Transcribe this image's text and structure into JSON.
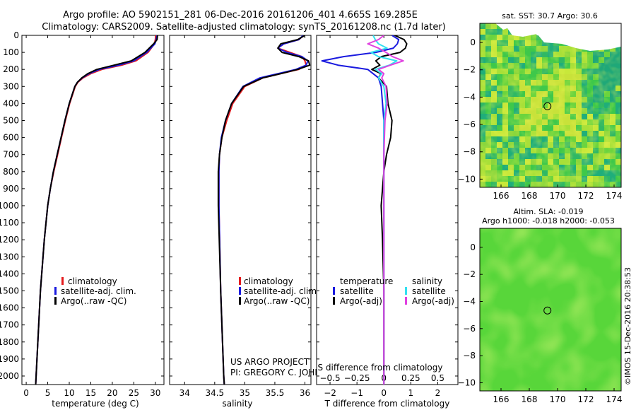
{
  "header": {
    "line1": "Argo profile: AO 5902151_281 06-Dec-2016 20161206_401 4.665S 169.285E",
    "line2": "Climatology: CARS2009. Satellite-adjusted climatology: synTS_20161208.nc (1.7d later)"
  },
  "credit": {
    "project": "US ARGO PROJECT",
    "pi": "PI: GREGORY C. JOHNSON",
    "side": "©IMOS 15-Dec-2016 20:38:53"
  },
  "colors": {
    "climatology": "#e41a1c",
    "satellite": "#1a1adf",
    "argo": "#000000",
    "sal_satellite": "#33e0f0",
    "sal_argo": "#e040e0"
  },
  "chart_data": [
    {
      "id": "temperature",
      "type": "line",
      "xlabel": "temperature (deg C)",
      "ylabel": "",
      "xlim": [
        -1,
        32
      ],
      "ylim": [
        2050,
        0
      ],
      "xticks": [
        0,
        5,
        10,
        15,
        20,
        25,
        30
      ],
      "yticks": [
        0,
        100,
        200,
        300,
        400,
        500,
        600,
        700,
        800,
        900,
        1000,
        1100,
        1200,
        1300,
        1400,
        1500,
        1600,
        1700,
        1800,
        1900,
        2000
      ],
      "legend": [
        "climatology",
        "satellite-adj. clim.",
        "Argo(..raw -QC)"
      ],
      "series": [
        {
          "name": "climatology",
          "depth": [
            0,
            25,
            50,
            100,
            150,
            175,
            200,
            225,
            250,
            275,
            300,
            400,
            500,
            600,
            700,
            800,
            900,
            1000,
            1200,
            1500,
            2000,
            2050
          ],
          "values": [
            30.1,
            30.0,
            29.8,
            28.3,
            25.5,
            22.2,
            17.6,
            15.0,
            13.2,
            12.0,
            11.4,
            10.1,
            9.1,
            8.2,
            7.3,
            6.4,
            5.6,
            5.0,
            4.2,
            3.3,
            2.3,
            2.2
          ]
        },
        {
          "name": "satellite",
          "depth": [
            0,
            25,
            50,
            100,
            150,
            175,
            200,
            225,
            250,
            275,
            300,
            400,
            500,
            600,
            700,
            800,
            900,
            1000,
            1200,
            1500,
            2000,
            2050
          ],
          "values": [
            30.4,
            30.2,
            29.9,
            28.0,
            25.0,
            21.5,
            17.0,
            14.6,
            13.0,
            11.9,
            11.3,
            10.0,
            9.0,
            8.1,
            7.2,
            6.3,
            5.6,
            5.0,
            4.2,
            3.3,
            2.3,
            2.2
          ]
        },
        {
          "name": "argo",
          "depth": [
            0,
            25,
            50,
            100,
            150,
            175,
            200,
            225,
            250,
            275,
            300,
            400,
            500,
            600,
            700,
            800,
            900,
            1000,
            1200,
            1500,
            2000,
            2050
          ],
          "values": [
            30.5,
            30.4,
            29.6,
            27.6,
            24.4,
            20.4,
            16.4,
            14.3,
            12.9,
            11.9,
            11.3,
            10.0,
            9.0,
            8.1,
            7.2,
            6.3,
            5.6,
            5.0,
            4.2,
            3.3,
            2.3,
            2.2
          ]
        }
      ]
    },
    {
      "id": "salinity",
      "type": "line",
      "xlabel": "salinity",
      "xlim": [
        33.75,
        36.1
      ],
      "ylim": [
        2050,
        0
      ],
      "xticks": [
        34,
        34.5,
        35,
        35.5,
        36
      ],
      "xticklabels": [
        "34",
        "34.5",
        "35",
        "35.5",
        "36"
      ],
      "legend": [
        "climatology",
        "satellite-adj. clim.",
        "Argo(..raw -QC)"
      ],
      "series": [
        {
          "name": "climatology",
          "depth": [
            0,
            25,
            50,
            75,
            100,
            125,
            150,
            175,
            200,
            225,
            250,
            300,
            400,
            500,
            600,
            700,
            800,
            1000,
            1500,
            2000,
            2050
          ],
          "values": [
            35.98,
            35.9,
            35.65,
            35.55,
            35.75,
            35.95,
            36.0,
            36.02,
            35.9,
            35.6,
            35.3,
            35.0,
            34.8,
            34.7,
            34.62,
            34.58,
            34.57,
            34.57,
            34.6,
            34.65,
            34.66
          ]
        },
        {
          "name": "satellite",
          "depth": [
            0,
            25,
            50,
            75,
            100,
            125,
            150,
            175,
            200,
            225,
            250,
            300,
            400,
            500,
            600,
            700,
            800,
            1000,
            1500,
            2000,
            2050
          ],
          "values": [
            35.97,
            35.9,
            35.65,
            35.55,
            35.7,
            35.95,
            36.05,
            36.02,
            35.85,
            35.55,
            35.25,
            34.97,
            34.78,
            34.68,
            34.61,
            34.58,
            34.57,
            34.57,
            34.6,
            34.65,
            34.66
          ]
        },
        {
          "name": "argo",
          "depth": [
            0,
            25,
            50,
            75,
            100,
            125,
            150,
            175,
            200,
            225,
            250,
            300,
            400,
            500,
            600,
            700,
            800,
            1000,
            1500,
            2000,
            2050
          ],
          "values": [
            36.0,
            35.88,
            35.6,
            35.55,
            35.62,
            35.9,
            36.06,
            36.08,
            35.88,
            35.6,
            35.3,
            34.98,
            34.78,
            34.68,
            34.62,
            34.58,
            34.56,
            34.56,
            34.6,
            34.65,
            34.66
          ]
        }
      ]
    },
    {
      "id": "differences",
      "type": "line",
      "xlabel": "T difference from climatology",
      "top_label": "S difference from climatology",
      "xlim": [
        -2.5,
        2.75
      ],
      "ylim": [
        2050,
        0
      ],
      "xticks": [
        -2,
        -1,
        0,
        1,
        2
      ],
      "xticklabels": [
        "−2",
        "−1",
        "0",
        "1",
        "2"
      ],
      "s_ticks": [
        -0.5,
        -0.25,
        0,
        0.25,
        0.5
      ],
      "s_ticklabels": [
        "−0.5",
        "−0.25",
        "0",
        "0.25",
        "0.5"
      ],
      "s_scale": 4,
      "legend_t_title": "temperature",
      "legend_s_title": "salinity",
      "legend_t": [
        "satellite",
        "Argo(-adj)"
      ],
      "legend_s": [
        "satellite",
        "Argo(-adj)"
      ],
      "series": [
        {
          "name": "T satellite",
          "variable": "T",
          "depth": [
            0,
            25,
            50,
            75,
            100,
            125,
            150,
            175,
            200,
            225,
            250,
            300,
            400,
            500,
            700,
            1000,
            1500,
            2000,
            2050
          ],
          "values": [
            0.3,
            0.55,
            0.5,
            0.35,
            -0.3,
            -1.5,
            -2.3,
            -1.7,
            -0.6,
            -0.4,
            -0.2,
            -0.1,
            -0.05,
            0.0,
            0.0,
            0.0,
            0.0,
            0.0,
            0.0
          ]
        },
        {
          "name": "T argo",
          "variable": "T",
          "depth": [
            0,
            25,
            50,
            75,
            100,
            125,
            150,
            175,
            200,
            225,
            250,
            300,
            400,
            500,
            600,
            700,
            800,
            1000,
            1200,
            1500,
            1800,
            2000,
            2050
          ],
          "values": [
            0.4,
            0.75,
            0.85,
            0.8,
            0.6,
            -0.1,
            -0.3,
            -0.15,
            -0.45,
            -0.1,
            -0.2,
            0.1,
            0.15,
            0.3,
            0.25,
            0.1,
            0.0,
            -0.1,
            -0.05,
            0.0,
            0.0,
            0.0,
            0.0
          ]
        },
        {
          "name": "S satellite",
          "variable": "S",
          "depth": [
            0,
            25,
            50,
            75,
            100,
            125,
            150,
            175,
            200,
            225,
            250,
            300,
            400,
            500,
            700,
            1000,
            1500,
            2000,
            2050
          ],
          "values": [
            -0.1,
            -0.08,
            -0.05,
            0.03,
            -0.12,
            -0.05,
            0.12,
            0.05,
            -0.08,
            -0.02,
            -0.05,
            0.0,
            0.02,
            0.0,
            0.0,
            0.0,
            0.0,
            0.0,
            0.0
          ]
        },
        {
          "name": "S argo",
          "variable": "S",
          "depth": [
            0,
            25,
            50,
            75,
            100,
            125,
            150,
            175,
            200,
            225,
            250,
            300,
            400,
            500,
            700,
            1000,
            1500,
            2000,
            2050
          ],
          "values": [
            0.0,
            -0.05,
            -0.15,
            -0.05,
            0.02,
            0.08,
            0.18,
            0.06,
            -0.05,
            0.0,
            -0.02,
            0.02,
            0.03,
            0.01,
            0.0,
            0.0,
            0.0,
            0.0,
            0.0
          ]
        }
      ]
    },
    {
      "id": "sst_map",
      "type": "heatmap",
      "title": "sat. SST: 30.7  Argo: 30.6",
      "xlim": [
        164.5,
        174.5
      ],
      "ylim": [
        -10.6,
        1.4
      ],
      "xticks": [
        166,
        168,
        170,
        172,
        174
      ],
      "yticks": [
        0,
        -2,
        -4,
        -6,
        -8,
        -10
      ],
      "yticklabels": [
        "0",
        "−2",
        "−4",
        "−6",
        "−8",
        "−10"
      ],
      "marker": {
        "lon": 169.285,
        "lat": -4.665
      }
    },
    {
      "id": "sla_map",
      "type": "heatmap",
      "title_line1": "Altim. SLA: -0.019",
      "title_line2": "Argo h1000: -0.018 h2000: -0.053",
      "xlim": [
        164.5,
        174.5
      ],
      "ylim": [
        -10.6,
        1.4
      ],
      "xticks": [
        166,
        168,
        170,
        172,
        174
      ],
      "yticks": [
        0,
        -2,
        -4,
        -6,
        -8,
        -10
      ],
      "yticklabels": [
        "0",
        "−2",
        "−4",
        "−6",
        "−8",
        "−10"
      ],
      "marker": {
        "lon": 169.285,
        "lat": -4.665
      }
    }
  ]
}
